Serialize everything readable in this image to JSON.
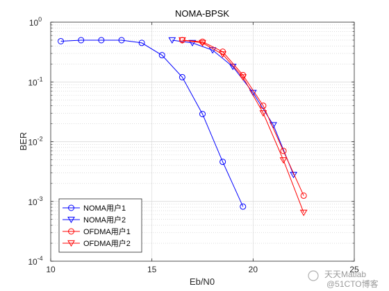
{
  "chart_data": {
    "type": "line",
    "title": "NOMA-BPSK",
    "xlabel": "Eb/N0",
    "ylabel": "BER",
    "xlim": [
      10,
      25
    ],
    "ylim": [
      0.0001,
      1
    ],
    "yscale": "log",
    "x_ticks": [
      "10",
      "15",
      "20",
      "25"
    ],
    "y_ticks": [
      {
        "base": "10",
        "exp": "0"
      },
      {
        "base": "10",
        "exp": "-1"
      },
      {
        "base": "10",
        "exp": "-2"
      },
      {
        "base": "10",
        "exp": "-3"
      },
      {
        "base": "10",
        "exp": "-4"
      }
    ],
    "grid": true,
    "legend_position": "bottom-left",
    "series": [
      {
        "name": "NOMA用户1",
        "color": "#0000ff",
        "marker": "circle",
        "x": [
          10.5,
          11.5,
          12.5,
          13.5,
          14.5,
          15.5,
          16.5,
          17.5,
          18.5,
          19.5
        ],
        "y": [
          0.48,
          0.5,
          0.5,
          0.5,
          0.45,
          0.28,
          0.12,
          0.029,
          0.0046,
          0.00082
        ]
      },
      {
        "name": "NOMA用户2",
        "color": "#0000ff",
        "marker": "triangle-down",
        "x": [
          16.0,
          17.0,
          18.0,
          19.0,
          20.0,
          21.0,
          22.0
        ],
        "y": [
          0.5,
          0.45,
          0.34,
          0.18,
          0.066,
          0.019,
          0.0028
        ]
      },
      {
        "name": "OFDMA用户1",
        "color": "#ff0000",
        "marker": "circle",
        "x": [
          16.5,
          17.5,
          18.5,
          19.5,
          20.5,
          21.5,
          22.5
        ],
        "y": [
          0.5,
          0.47,
          0.32,
          0.13,
          0.04,
          0.007,
          0.00125
        ]
      },
      {
        "name": "OFDMA用户2",
        "color": "#ff0000",
        "marker": "triangle-down",
        "x": [
          16.5,
          17.5,
          18.5,
          19.5,
          20.5,
          21.5,
          22.5
        ],
        "y": [
          0.5,
          0.45,
          0.29,
          0.12,
          0.03,
          0.0049,
          0.00065
        ]
      }
    ]
  },
  "watermark": {
    "top": "天天Matlab",
    "bottom": "@51CTO博客"
  }
}
